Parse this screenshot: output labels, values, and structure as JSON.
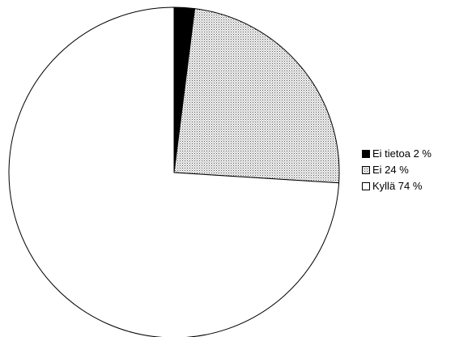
{
  "chart_data": {
    "type": "pie",
    "title": "",
    "categories": [
      "Ei tietoa",
      "Ei",
      "Kyllä"
    ],
    "values": [
      2,
      24,
      74
    ],
    "labels": [
      "Ei tietoa 2 %",
      "Ei 24 %",
      "Kyllä 74 %"
    ],
    "fills": [
      "solid-black",
      "dotted-gray",
      "white"
    ],
    "colors": [
      "#000000",
      "#cfcfcf",
      "#ffffff"
    ],
    "start_angle_deg": 0,
    "direction": "clockwise",
    "legend_position": "right"
  }
}
